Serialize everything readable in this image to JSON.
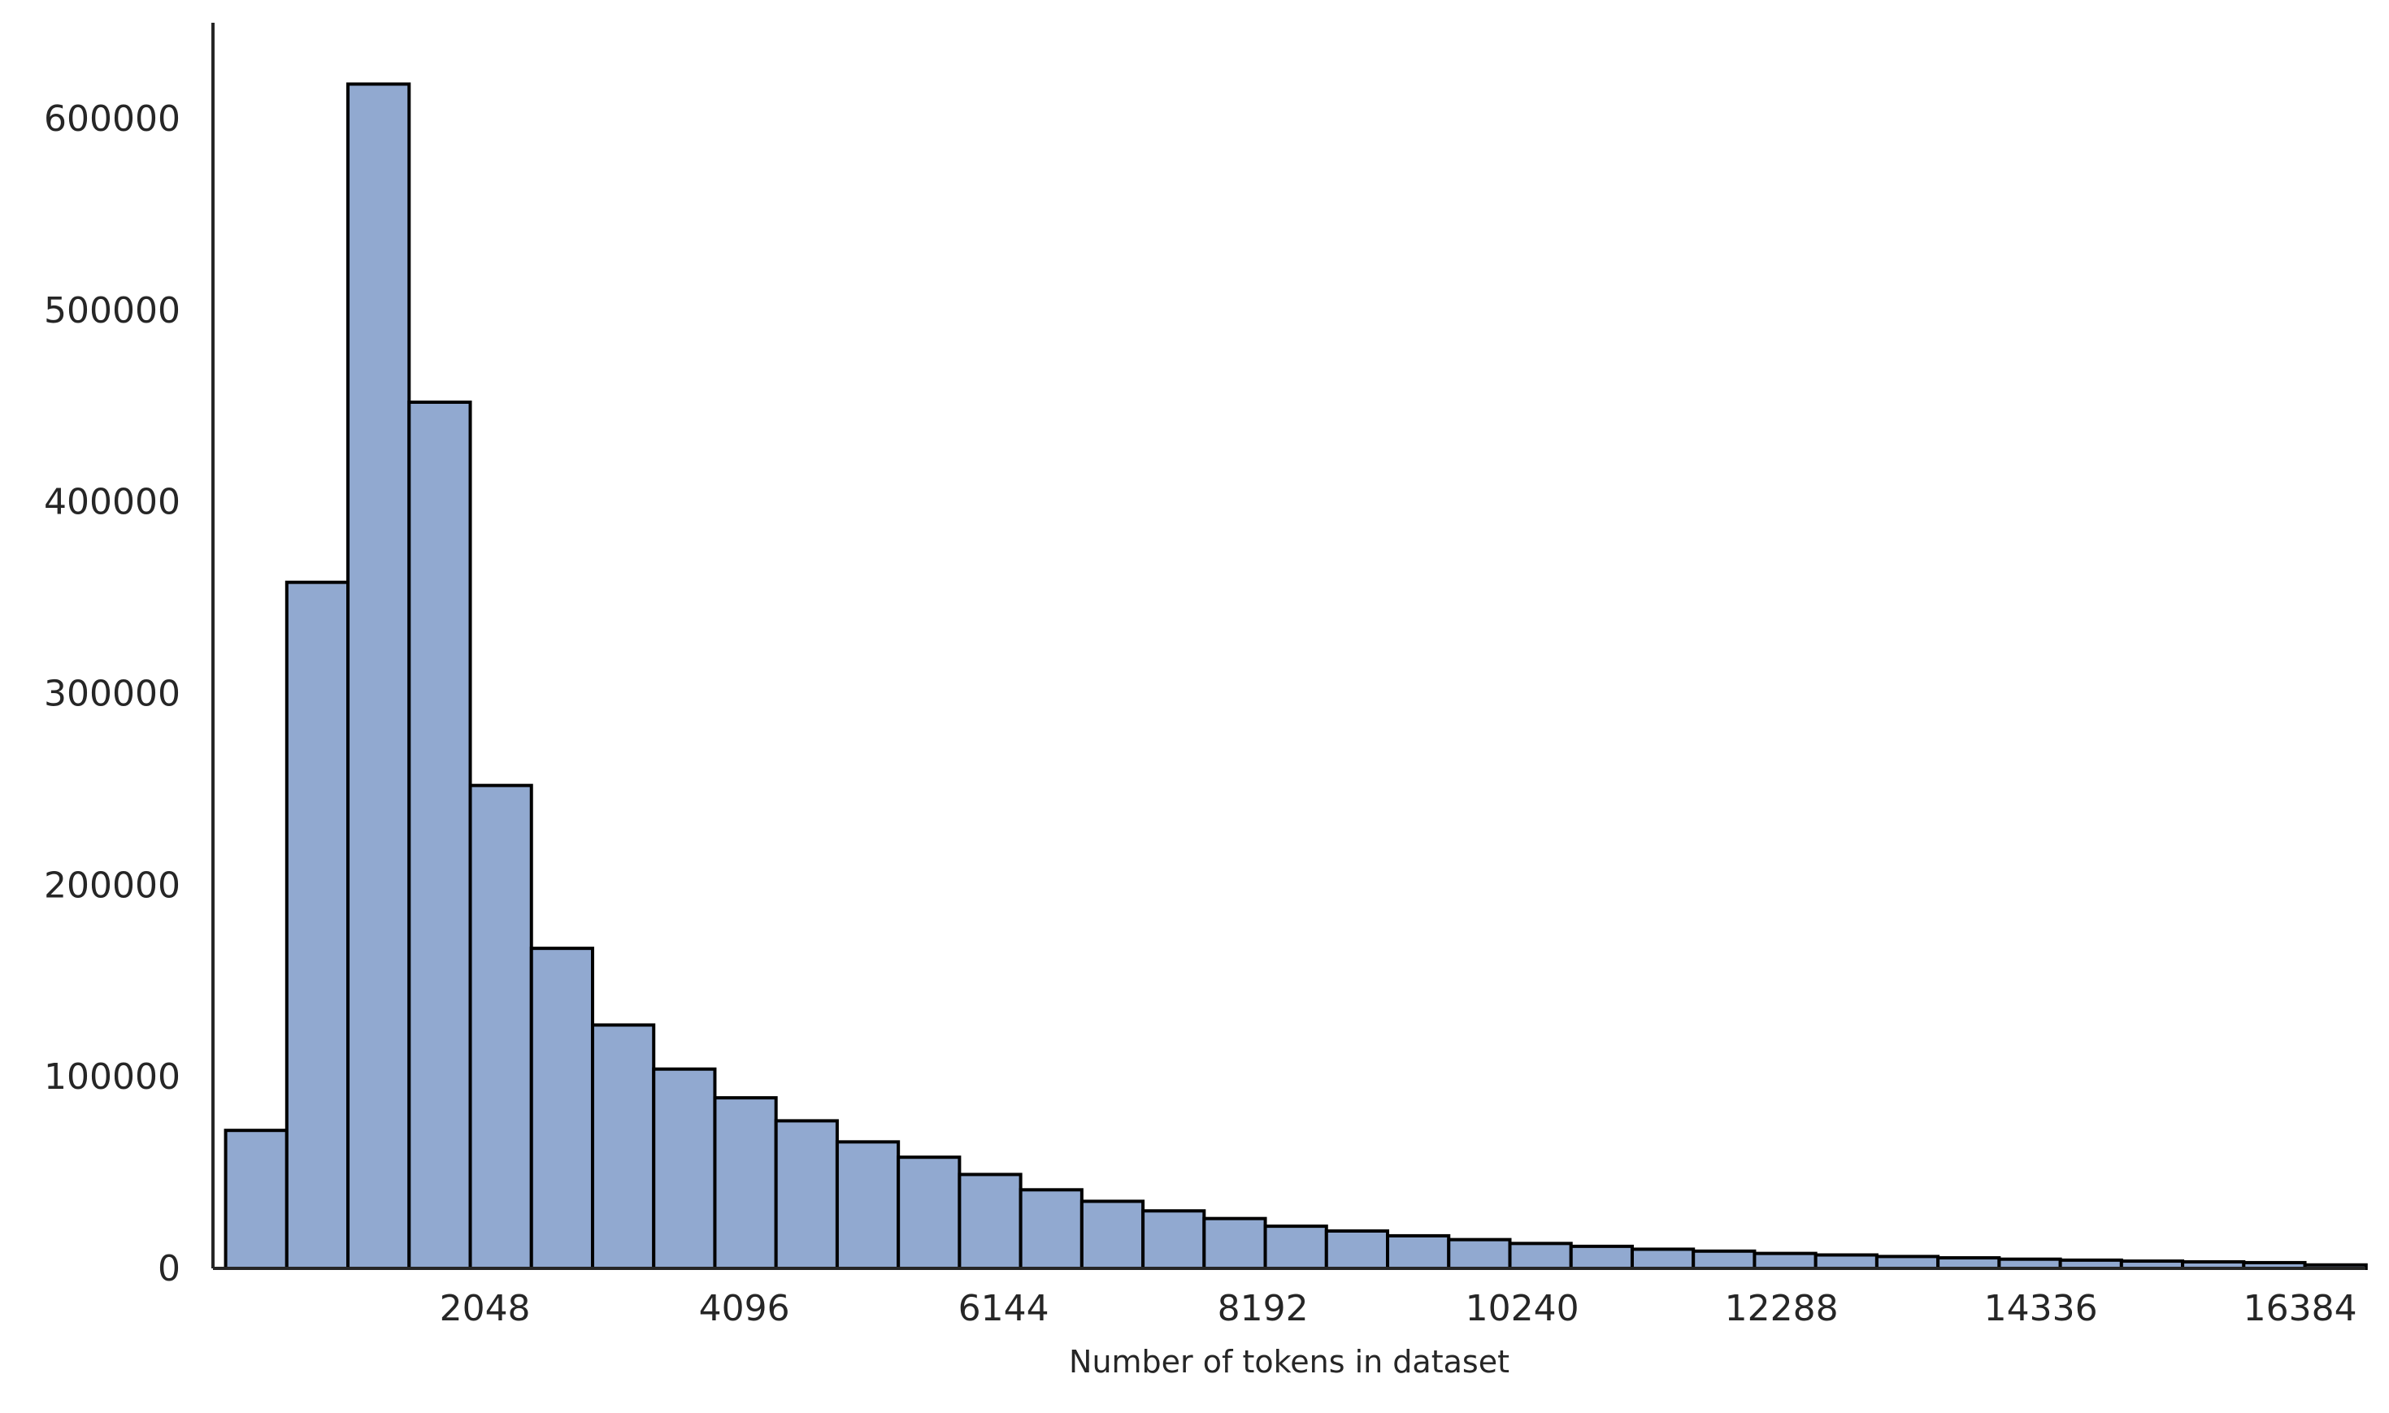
{
  "chart_data": {
    "type": "bar",
    "subtype": "histogram",
    "xlabel": "Number of tokens in dataset",
    "ylabel": "",
    "x_ticks": [
      2048,
      4096,
      6144,
      8192,
      10240,
      12288,
      14336,
      16384
    ],
    "y_ticks": [
      0,
      100000,
      200000,
      300000,
      400000,
      500000,
      600000
    ],
    "xlim": [
      -100,
      16900
    ],
    "ylim": [
      0,
      650000
    ],
    "bin_start": 0,
    "bin_width": 483,
    "values": [
      72000,
      358000,
      618000,
      452000,
      252000,
      167000,
      127000,
      104000,
      89000,
      77000,
      66000,
      58000,
      49000,
      41000,
      35000,
      30000,
      26000,
      22000,
      19500,
      17000,
      15000,
      13000,
      11500,
      10000,
      9000,
      7800,
      7000,
      6200,
      5500,
      4800,
      4300,
      3800,
      3400,
      3000,
      1800
    ],
    "bar_color": "#91a9d0",
    "edge_color": "#000000",
    "grid": false
  }
}
